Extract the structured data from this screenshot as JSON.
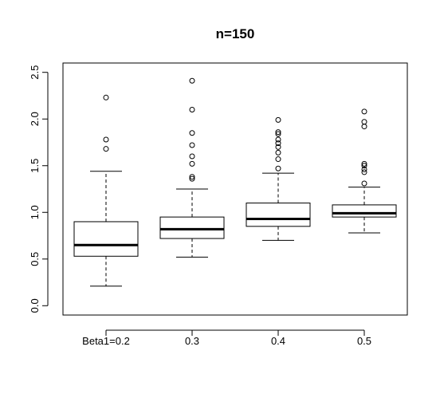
{
  "chart_data": {
    "type": "boxplot",
    "title": "n=150",
    "xlabel": "",
    "ylabel": "",
    "ylim": [
      -0.1,
      2.6
    ],
    "yticks": [
      0.0,
      0.5,
      1.0,
      1.5,
      2.0,
      2.5
    ],
    "ytick_labels": [
      "0.0",
      "0.5",
      "1.0",
      "1.5",
      "2.0",
      "2.5"
    ],
    "categories": [
      "Beta1=0.2",
      "0.3",
      "0.4",
      "0.5"
    ],
    "boxes": [
      {
        "category": "Beta1=0.2",
        "whisker_low": 0.21,
        "q1": 0.53,
        "median": 0.65,
        "q3": 0.9,
        "whisker_high": 1.44,
        "outliers": [
          1.68,
          1.78,
          2.23
        ]
      },
      {
        "category": "0.3",
        "whisker_low": 0.52,
        "q1": 0.72,
        "median": 0.82,
        "q3": 0.95,
        "whisker_high": 1.25,
        "outliers": [
          1.36,
          1.38,
          1.52,
          1.6,
          1.72,
          1.85,
          2.1,
          2.41
        ]
      },
      {
        "category": "0.4",
        "whisker_low": 0.7,
        "q1": 0.85,
        "median": 0.93,
        "q3": 1.1,
        "whisker_high": 1.42,
        "outliers": [
          1.47,
          1.57,
          1.64,
          1.7,
          1.74,
          1.78,
          1.84,
          1.86,
          1.99
        ]
      },
      {
        "category": "0.5",
        "whisker_low": 0.78,
        "q1": 0.95,
        "median": 0.99,
        "q3": 1.08,
        "whisker_high": 1.27,
        "outliers": [
          1.31,
          1.43,
          1.46,
          1.5,
          1.52,
          1.92,
          1.97,
          2.08
        ]
      }
    ],
    "grid": false,
    "legend": "none"
  }
}
